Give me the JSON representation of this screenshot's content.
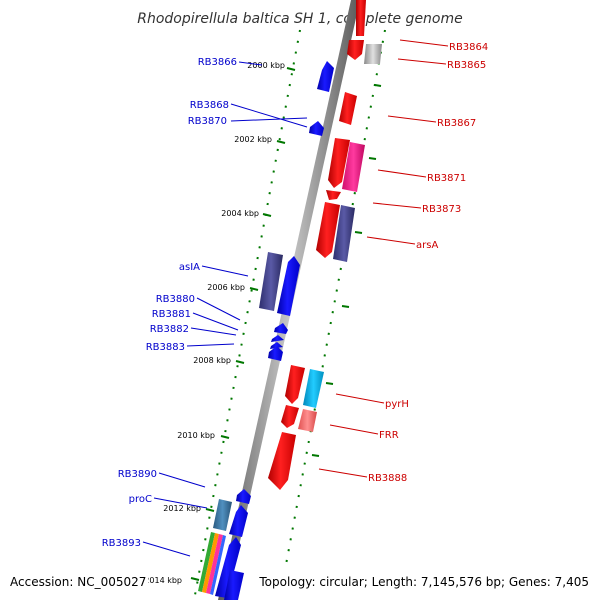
{
  "title": "Rhodopirellula baltica SH 1, complete genome",
  "footer": {
    "accession": "Accession: NC_005027",
    "topology": "Topology: circular; Length: 7,145,576 bp; Genes: 7,405"
  },
  "scale_ticks": [
    "2000 kbp",
    "2002 kbp",
    "2004 kbp",
    "2006 kbp",
    "2008 kbp",
    "2010 kbp",
    "2012 kbp",
    "2014 kbp"
  ],
  "left_genes": [
    "RB3866",
    "RB3868",
    "RB3870",
    "asIA",
    "RB3880",
    "RB3881",
    "RB3882",
    "RB3883",
    "RB3890",
    "proC",
    "RB3893"
  ],
  "right_genes": [
    "RB3864",
    "RB3865",
    "RB3867",
    "RB3871",
    "RB3873",
    "arsA",
    "pyrH",
    "FRR",
    "RB3888"
  ],
  "colors": {
    "minus_strand": "#ff0000",
    "plus_strand": "#0000ff",
    "label_left": "#0000cc",
    "label_right": "#cc0000",
    "tick": "#007700",
    "backbone": "#888888"
  }
}
